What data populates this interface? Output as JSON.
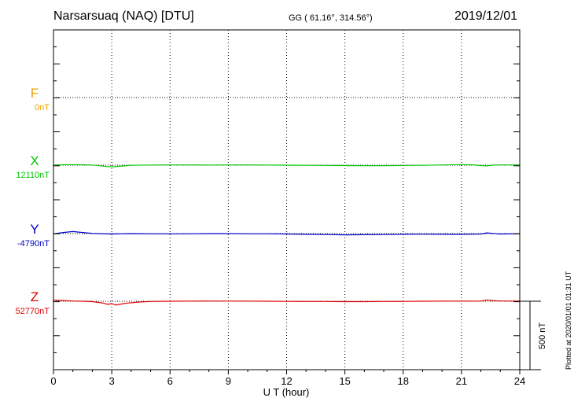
{
  "header": {
    "station": "Narsarsuaq (NAQ)  [DTU]",
    "coords": "GG ( 61.16°, 314.56°)",
    "date": "2019/12/01"
  },
  "footer": {
    "plotted": "Plotted at 2020/01/01 01:31  UT"
  },
  "chart_data": {
    "type": "line",
    "xlabel": "U T (hour)",
    "xlim": [
      0,
      24
    ],
    "xticks": [
      0,
      3,
      6,
      9,
      12,
      15,
      18,
      21,
      24
    ],
    "grid": true,
    "scale_bar": {
      "label": "500 nT",
      "value_nT": 500
    },
    "series": [
      {
        "name": "F",
        "baseline_label": "0nT",
        "color": "#f0a000",
        "visible": false,
        "x": [],
        "y": []
      },
      {
        "name": "X",
        "baseline_label": "12110nT",
        "color": "#00c800",
        "visible": true,
        "x": [
          0,
          0.5,
          1,
          1.5,
          2,
          2.5,
          2.7,
          3,
          3.3,
          3.6,
          4,
          5,
          6,
          7,
          8,
          9,
          10,
          11,
          12,
          13,
          14,
          15,
          16,
          17,
          18,
          19,
          20,
          21,
          21.5,
          22,
          22.3,
          22.6,
          23,
          23.5,
          24
        ],
        "y": [
          12112,
          12113,
          12114,
          12113,
          12111,
          12104,
          12100,
          12098,
          12101,
          12104,
          12109,
          12111,
          12112,
          12112,
          12111,
          12112,
          12112,
          12111,
          12110,
          12109,
          12108,
          12107,
          12106,
          12106,
          12108,
          12109,
          12112,
          12114,
          12113,
          12107,
          12105,
          12110,
          12112,
          12112,
          12112
        ]
      },
      {
        "name": "Y",
        "baseline_label": "-4790nT",
        "color": "#0000c8",
        "visible": true,
        "x": [
          0,
          0.5,
          1,
          1.5,
          2,
          2.5,
          3,
          3.5,
          4,
          5,
          6,
          7,
          8,
          9,
          10,
          11,
          12,
          13,
          14,
          15,
          16,
          17,
          18,
          19,
          20,
          21,
          22,
          22.3,
          22.6,
          23,
          24
        ],
        "y": [
          -4792,
          -4782,
          -4775,
          -4782,
          -4788,
          -4791,
          -4793,
          -4791,
          -4790,
          -4791,
          -4792,
          -4791,
          -4790,
          -4790,
          -4791,
          -4791,
          -4793,
          -4795,
          -4797,
          -4799,
          -4798,
          -4797,
          -4795,
          -4794,
          -4795,
          -4795,
          -4793,
          -4785,
          -4788,
          -4793,
          -4791
        ]
      },
      {
        "name": "Z",
        "baseline_label": "52770nT",
        "color": "#e00000",
        "visible": true,
        "x": [
          0,
          0.5,
          1,
          1.5,
          2,
          2.5,
          2.8,
          3,
          3.2,
          3.5,
          3.8,
          4.5,
          5,
          6,
          7,
          8,
          9,
          10,
          11,
          12,
          13,
          14,
          15,
          16,
          17,
          18,
          19,
          20,
          21,
          22,
          22.3,
          22.6,
          23,
          24
        ],
        "y": [
          52778,
          52775,
          52772,
          52770,
          52767,
          52758,
          52747,
          52753,
          52742,
          52750,
          52757,
          52765,
          52768,
          52770,
          52771,
          52772,
          52771,
          52771,
          52770,
          52769,
          52768,
          52768,
          52767,
          52767,
          52768,
          52769,
          52770,
          52771,
          52771,
          52771,
          52780,
          52775,
          52772,
          52772
        ]
      }
    ]
  }
}
